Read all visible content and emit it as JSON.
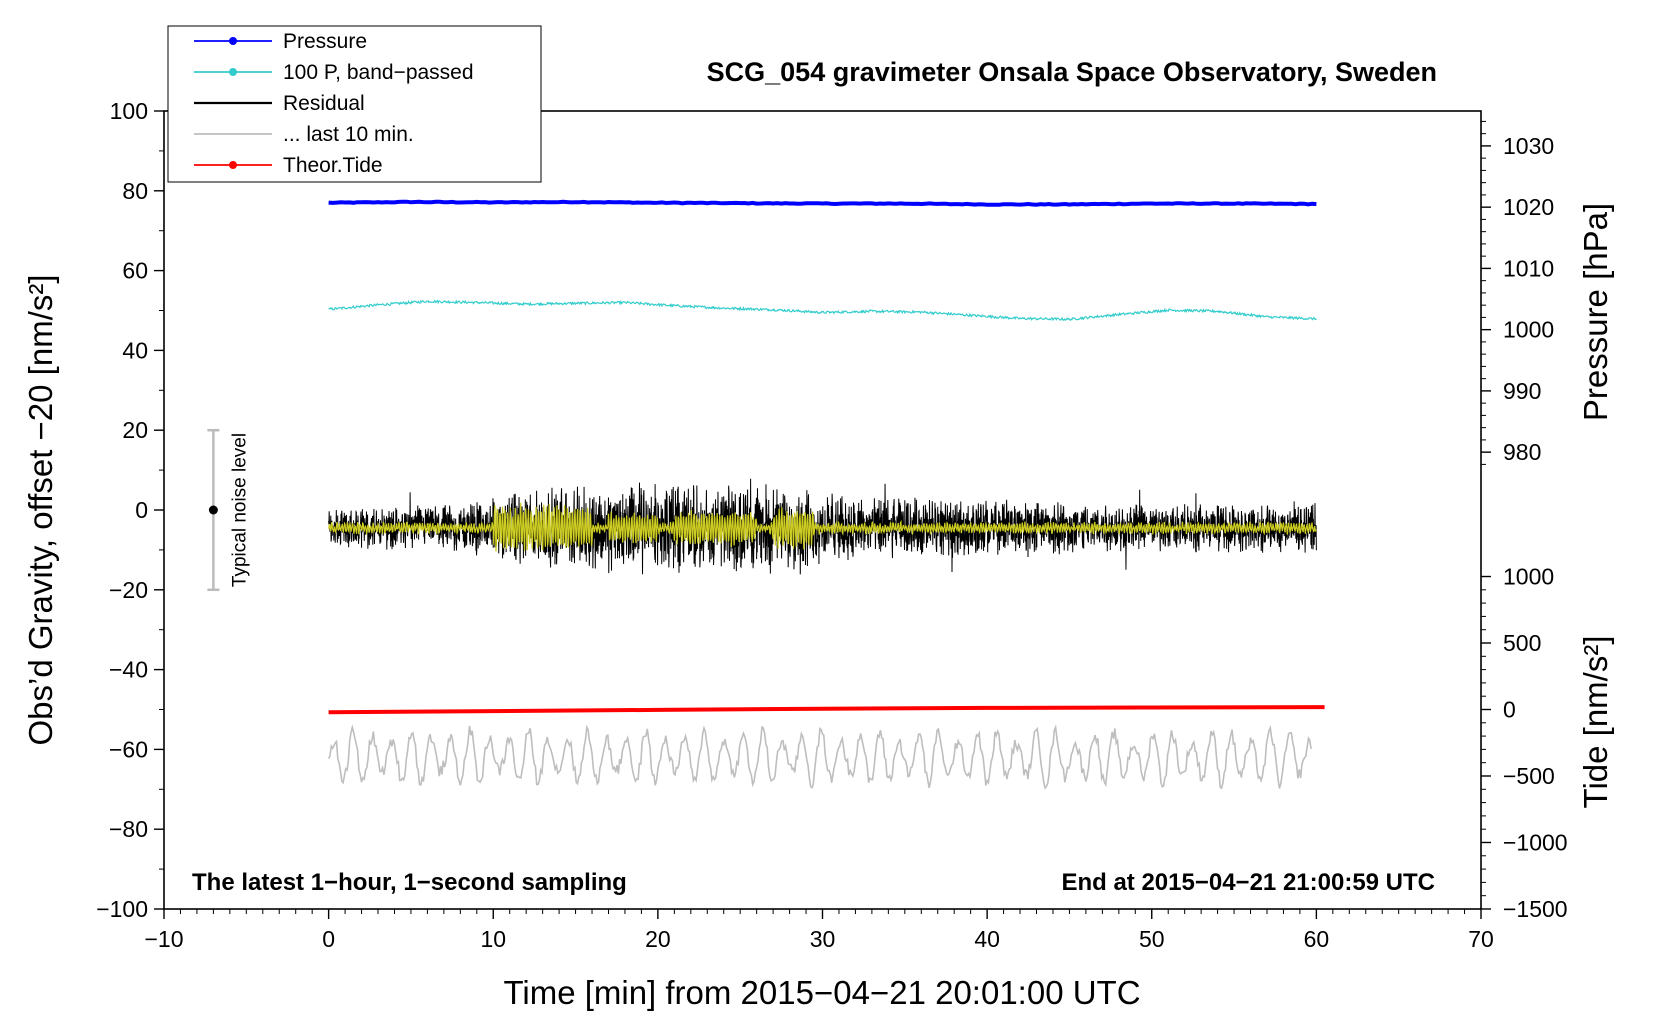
{
  "chart_data": {
    "type": "line",
    "title": "SCG_054 gravimeter Onsala Space Observatory, Sweden",
    "xlabel": "Time [min] from 2015−04−21 20:01:00 UTC",
    "ylabel_left": "Obs’d Gravity, offset −20 [nm/s²]",
    "ylabel_right_top": "Pressure [hPa]",
    "ylabel_right_bottom": "Tide [nm/s²]",
    "xlim": [
      -10,
      70
    ],
    "ylim_left": [
      -100,
      100
    ],
    "x_ticks": [
      "−10",
      "0",
      "10",
      "20",
      "30",
      "40",
      "50",
      "60",
      "70"
    ],
    "x_tick_values": [
      -10,
      0,
      10,
      20,
      30,
      40,
      50,
      60,
      70
    ],
    "y_ticks_left": [
      "−100",
      "−80",
      "−60",
      "−40",
      "−20",
      "0",
      "20",
      "40",
      "60",
      "80",
      "100"
    ],
    "y_tick_values_left": [
      -100,
      -80,
      -60,
      -40,
      -20,
      0,
      20,
      40,
      60,
      80,
      100
    ],
    "pressure_axis": {
      "ticks": [
        "980",
        "990",
        "1000",
        "1010",
        "1020",
        "1030"
      ],
      "tick_values": [
        980,
        990,
        1000,
        1010,
        1020,
        1030
      ],
      "left_equivalent_at_980": 14.5,
      "left_per_hPa": 1.535
    },
    "tide_axis": {
      "ticks": [
        "−1500",
        "−1000",
        "−500",
        "0",
        "500",
        "1000"
      ],
      "tick_values": [
        -1500,
        -1000,
        -500,
        0,
        500,
        1000
      ],
      "left_equivalent_at_0": -50,
      "left_per_unit": 0.03333
    },
    "series": [
      {
        "name": "Pressure",
        "color": "#0000ff",
        "width": 4,
        "x": [
          0,
          5,
          10,
          15,
          20,
          25,
          30,
          35,
          40,
          45,
          50,
          55,
          60
        ],
        "y": [
          77.0,
          77.2,
          77.1,
          77.2,
          77.0,
          76.9,
          76.8,
          76.8,
          76.6,
          76.6,
          76.8,
          76.8,
          76.7
        ]
      },
      {
        "name": "100 P, band−passed",
        "color": "#33cccc",
        "width": 1.2,
        "x": [
          0,
          3,
          6,
          9,
          12,
          15,
          18,
          21,
          24,
          27,
          30,
          33,
          36,
          39,
          42,
          45,
          48,
          51,
          54,
          57,
          60
        ],
        "y": [
          50.3,
          51.4,
          52.3,
          52.0,
          51.6,
          51.8,
          52.0,
          51.2,
          50.6,
          50.2,
          49.5,
          49.8,
          49.6,
          48.8,
          48.0,
          47.8,
          49.0,
          50.1,
          49.8,
          48.4,
          47.9
        ]
      },
      {
        "name": "Residual",
        "color": "#000000",
        "width": 1,
        "noise_amplitude_envelope": {
          "x": [
            0,
            8,
            12,
            18,
            23,
            28,
            31,
            40,
            50,
            60
          ],
          "amp": [
            4,
            5,
            8,
            10,
            9,
            9,
            7,
            6,
            5,
            5
          ]
        },
        "baseline": -4.5
      },
      {
        "name": "... last 10 min.",
        "color": "#bebebe",
        "width": 1.6,
        "baseline": -62,
        "amplitude": 6
      },
      {
        "name": "Theor.Tide",
        "color": "#ff0000",
        "width": 4,
        "x": [
          0,
          10,
          20,
          30,
          40,
          50,
          60.5
        ],
        "y": [
          -50.7,
          -50.4,
          -50.1,
          -49.8,
          -49.6,
          -49.5,
          -49.4
        ]
      }
    ],
    "smoothed_residual": {
      "color": "#cccc22",
      "baseline": -4.5
    },
    "noise_indicator": {
      "label": "Typical noise level",
      "x": -7,
      "center": 0,
      "low": -20,
      "high": 20
    },
    "annotations": {
      "bottom_left": "The latest 1−hour, 1−second sampling",
      "bottom_right": "End at 2015−04−21 21:00:59 UTC"
    },
    "legend": [
      {
        "label": "Pressure",
        "color": "#0000ff",
        "marker": true
      },
      {
        "label": "100 P, band−passed",
        "color": "#33cccc",
        "marker": true
      },
      {
        "label": "Residual",
        "color": "#000000",
        "marker": false
      },
      {
        "label": "... last 10 min.",
        "color": "#bebebe",
        "marker": false
      },
      {
        "label": "Theor.Tide",
        "color": "#ff0000",
        "marker": true
      }
    ]
  }
}
